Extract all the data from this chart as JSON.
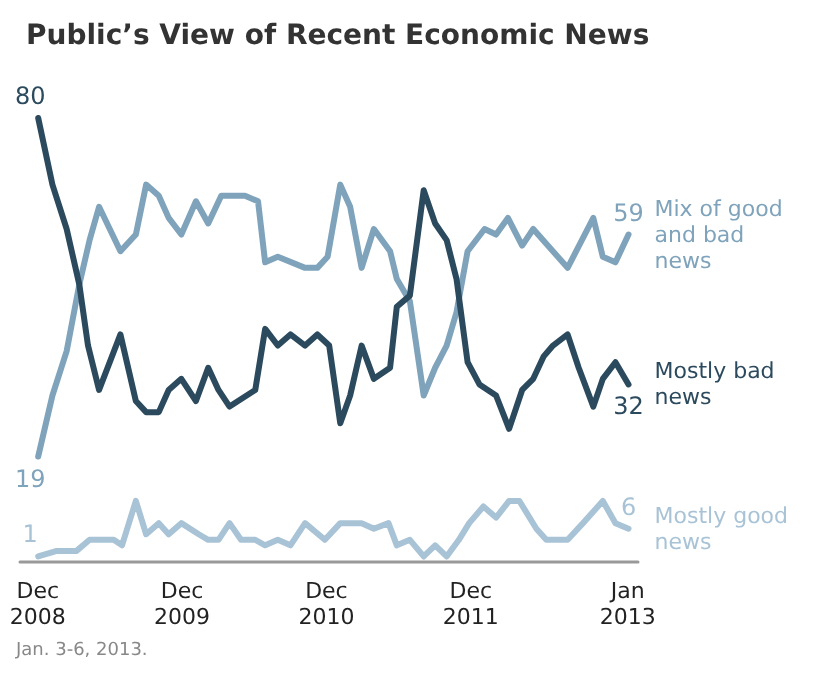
{
  "chart_data": {
    "type": "line",
    "title": "Public’s View of Recent Economic News",
    "annotations": [
      "Jan. 3-6, 2013."
    ],
    "xlim": [
      "2008-10-17",
      "2013-01-27"
    ],
    "xticks": [
      {
        "value": "2008-12-01",
        "label": "Dec 2008"
      },
      {
        "value": "2009-12-01",
        "label": "Dec 2009"
      },
      {
        "value": "2010-12-01",
        "label": "Dec 2010"
      },
      {
        "value": "2011-12-01",
        "label": "Dec 2011"
      },
      {
        "value": "2013-01-01",
        "label": "Jan 2013"
      }
    ],
    "tick_labels": "x",
    "grid": false,
    "marker": "none",
    "line_style": "solid",
    "series": [
      {
        "name": "Mix of good and bad news",
        "color": "#7fa3bb",
        "x": [
          "2008-12-02",
          "2009-01-07",
          "2009-02-12",
          "2009-03-16",
          "2009-04-11",
          "2009-05-05",
          "2009-06-28",
          "2009-08-06",
          "2009-09-01",
          "2009-10-03",
          "2009-10-28",
          "2009-11-29",
          "2010-01-05",
          "2010-02-05",
          "2010-03-10",
          "2010-05-09",
          "2010-06-11",
          "2010-06-29",
          "2010-07-31",
          "2010-10-08",
          "2010-11-08",
          "2010-12-04",
          "2011-01-05",
          "2011-01-30",
          "2011-02-28",
          "2011-03-31",
          "2011-05-11",
          "2011-05-28",
          "2011-06-30",
          "2011-08-04",
          "2011-09-02",
          "2011-10-01",
          "2011-10-26",
          "2011-11-23",
          "2012-01-05",
          "2012-02-03",
          "2012-03-04",
          "2012-04-09",
          "2012-05-07",
          "2012-08-02",
          "2012-10-06",
          "2012-10-30",
          "2012-12-01",
          "2013-01-03"
        ],
        "values": [
          19,
          30,
          38,
          50,
          58,
          64,
          56,
          59,
          68,
          66,
          62,
          59,
          65,
          61,
          66,
          66,
          65,
          54,
          55,
          53,
          53,
          55,
          68,
          64,
          53,
          60,
          56,
          51,
          47,
          30,
          35,
          39,
          45,
          56,
          60,
          59,
          62,
          57,
          60,
          53,
          62,
          55,
          54,
          59
        ],
        "value_labels": [
          "19",
          null,
          null,
          null,
          null,
          null,
          null,
          null,
          null,
          null,
          null,
          null,
          null,
          null,
          null,
          null,
          null,
          null,
          null,
          null,
          null,
          null,
          null,
          null,
          null,
          null,
          null,
          null,
          null,
          null,
          null,
          null,
          null,
          null,
          null,
          null,
          null,
          null,
          null,
          null,
          null,
          null,
          null,
          "59"
        ]
      },
      {
        "name": "Mostly bad news",
        "color": "#2c4a5e",
        "x": [
          "2008-12-02",
          "2009-01-07",
          "2009-02-12",
          "2009-03-16",
          "2009-04-07",
          "2009-05-05",
          "2009-06-28",
          "2009-08-06",
          "2009-09-01",
          "2009-10-03",
          "2009-10-28",
          "2009-11-29",
          "2010-01-05",
          "2010-02-05",
          "2010-03-03",
          "2010-03-31",
          "2010-06-04",
          "2010-06-29",
          "2010-07-31",
          "2010-09-01",
          "2010-10-08",
          "2010-11-08",
          "2010-12-08",
          "2011-01-05",
          "2011-01-30",
          "2011-02-28",
          "2011-03-31",
          "2011-05-11",
          "2011-05-28",
          "2011-06-30",
          "2011-08-04",
          "2011-09-02",
          "2011-10-01",
          "2011-10-26",
          "2011-11-23",
          "2011-12-23",
          "2012-02-03",
          "2012-03-07",
          "2012-04-09",
          "2012-05-07",
          "2012-06-02",
          "2012-06-26",
          "2012-08-02",
          "2012-08-30",
          "2012-10-06",
          "2012-10-30",
          "2012-12-01",
          "2013-01-03"
        ],
        "values": [
          80,
          68,
          60,
          50,
          39,
          31,
          41,
          29,
          27,
          27,
          31,
          33,
          29,
          35,
          31,
          28,
          31,
          42,
          39,
          41,
          39,
          41,
          39,
          25,
          30,
          39,
          33,
          35,
          46,
          48,
          67,
          61,
          58,
          51,
          36,
          32,
          30,
          24,
          31,
          33,
          37,
          39,
          41,
          35,
          28,
          33,
          36,
          32
        ],
        "value_labels": [
          "80",
          null,
          null,
          null,
          null,
          null,
          null,
          null,
          null,
          null,
          null,
          null,
          null,
          null,
          null,
          null,
          null,
          null,
          null,
          null,
          null,
          null,
          null,
          null,
          null,
          null,
          null,
          null,
          null,
          null,
          null,
          null,
          null,
          null,
          null,
          null,
          null,
          null,
          null,
          null,
          null,
          null,
          null,
          null,
          null,
          null,
          null,
          "32"
        ]
      },
      {
        "name": "Mostly good news",
        "color": "#a9c3d6",
        "x": [
          "2008-12-02",
          "2009-01-18",
          "2009-03-09",
          "2009-04-11",
          "2009-06-11",
          "2009-07-02",
          "2009-08-06",
          "2009-09-01",
          "2009-10-03",
          "2009-10-28",
          "2009-11-29",
          "2010-01-12",
          "2010-02-05",
          "2010-03-03",
          "2010-03-31",
          "2010-04-29",
          "2010-06-04",
          "2010-06-29",
          "2010-07-31",
          "2010-09-01",
          "2010-10-08",
          "2010-11-27",
          "2011-01-05",
          "2011-01-30",
          "2011-02-28",
          "2011-03-31",
          "2011-05-07",
          "2011-05-28",
          "2011-06-30",
          "2011-08-04",
          "2011-09-02",
          "2011-10-01",
          "2011-11-01",
          "2011-11-27",
          "2012-01-02",
          "2012-02-03",
          "2012-03-07",
          "2012-04-02",
          "2012-05-15",
          "2012-06-09",
          "2012-07-04",
          "2012-08-02",
          "2012-09-10",
          "2012-10-30",
          "2012-12-01",
          "2013-01-03"
        ],
        "values": [
          1,
          2,
          2,
          4,
          4,
          3,
          11,
          5,
          7,
          5,
          7,
          5,
          4,
          4,
          7,
          4,
          4,
          3,
          4,
          3,
          7,
          4,
          7,
          7,
          7,
          6,
          7,
          3,
          4,
          1,
          3,
          1,
          4,
          7,
          10,
          8,
          11,
          11,
          6,
          4,
          4,
          4,
          7,
          11,
          7,
          6
        ],
        "value_labels": [
          "1",
          null,
          null,
          null,
          null,
          null,
          null,
          null,
          null,
          null,
          null,
          null,
          null,
          null,
          null,
          null,
          null,
          null,
          null,
          null,
          null,
          null,
          null,
          null,
          null,
          null,
          null,
          null,
          null,
          null,
          null,
          null,
          null,
          null,
          null,
          null,
          null,
          null,
          null,
          null,
          null,
          null,
          null,
          null,
          null,
          "6"
        ]
      }
    ]
  }
}
